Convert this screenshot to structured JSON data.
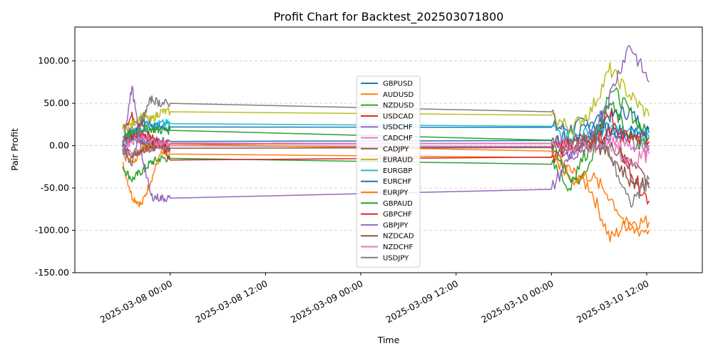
{
  "chart_data": {
    "type": "line",
    "title": "Profit Chart for Backtest_202503071800",
    "xlabel": "Time",
    "ylabel": "Pair Profit",
    "x_ticks": [
      "2025-03-08 00:00",
      "2025-03-08 12:00",
      "2025-03-09 00:00",
      "2025-03-09 12:00",
      "2025-03-10 00:00",
      "2025-03-10 12:00"
    ],
    "x_range_hours": [
      -12,
      67
    ],
    "y_ticks": [
      "100.00",
      "50.00",
      "0.00",
      "-50.00",
      "-100.00",
      "-150.00"
    ],
    "ylim": [
      -150,
      140
    ],
    "grid": "horizontal-dashed",
    "legend_position": "center",
    "series": [
      {
        "name": "GBPUSD",
        "color": "#1f77b4",
        "start": 10,
        "sessA": [
          12,
          30,
          25,
          22
        ],
        "end": 22,
        "sessB": [
          20,
          30,
          35,
          40
        ],
        "finish": 15
      },
      {
        "name": "AUDUSD",
        "color": "#ff7f0e",
        "start": -20,
        "sessA": [
          -60,
          -70,
          -40,
          -10
        ],
        "end": -10,
        "sessB": [
          -30,
          -50,
          -110,
          -90
        ],
        "finish": -90
      },
      {
        "name": "NZDUSD",
        "color": "#2ca02c",
        "start": -25,
        "sessA": [
          -40,
          -30,
          -20,
          -15
        ],
        "end": -15,
        "sessB": [
          -50,
          -20,
          70,
          40
        ],
        "finish": 10
      },
      {
        "name": "USDCAD",
        "color": "#d62728",
        "start": 20,
        "sessA": [
          35,
          25,
          10,
          5
        ],
        "end": -17,
        "sessB": [
          0,
          10,
          40,
          -30
        ],
        "finish": -65
      },
      {
        "name": "USDCHF",
        "color": "#9467bd",
        "start": 5,
        "sessA": [
          20,
          5,
          -5,
          0
        ],
        "end": 0,
        "sessB": [
          -10,
          0,
          10,
          5
        ],
        "finish": 0
      },
      {
        "name": "CADCHF",
        "color": "#e377c2",
        "start": -5,
        "sessA": [
          -10,
          -5,
          -2,
          0
        ],
        "end": 0,
        "sessB": [
          -5,
          0,
          5,
          0
        ],
        "finish": -5
      },
      {
        "name": "CADJPY",
        "color": "#8c564b",
        "start": 0,
        "sessA": [
          10,
          5,
          0,
          2
        ],
        "end": 2,
        "sessB": [
          5,
          10,
          0,
          -20
        ],
        "finish": -45
      },
      {
        "name": "EURAUD",
        "color": "#bcbd22",
        "start": 20,
        "sessA": [
          25,
          35,
          30,
          40
        ],
        "end": 40,
        "sessB": [
          20,
          40,
          90,
          60
        ],
        "finish": 35
      },
      {
        "name": "EURGBP",
        "color": "#17becf",
        "start": 5,
        "sessA": [
          15,
          20,
          22,
          26
        ],
        "end": 26,
        "sessB": [
          10,
          15,
          20,
          15
        ],
        "finish": 10
      },
      {
        "name": "EURCHF",
        "color": "#1f77b4",
        "start": 0,
        "sessA": [
          5,
          10,
          5,
          5
        ],
        "end": 5,
        "sessB": [
          10,
          20,
          20,
          15
        ],
        "finish": 20
      },
      {
        "name": "EURJPY",
        "color": "#ff7f0e",
        "start": -10,
        "sessA": [
          -20,
          -5,
          0,
          2
        ],
        "end": 2,
        "sessB": [
          -40,
          -35,
          -60,
          -100
        ],
        "finish": -100
      },
      {
        "name": "GBPAUD",
        "color": "#2ca02c",
        "start": 10,
        "sessA": [
          15,
          20,
          20,
          18
        ],
        "end": 18,
        "sessB": [
          -40,
          0,
          50,
          10
        ],
        "finish": -5
      },
      {
        "name": "GBPCHF",
        "color": "#d62728",
        "start": 5,
        "sessA": [
          10,
          15,
          5,
          3
        ],
        "end": 3,
        "sessB": [
          0,
          5,
          15,
          10
        ],
        "finish": 5
      },
      {
        "name": "GBPJPY",
        "color": "#9467bd",
        "start": 0,
        "sessA": [
          70,
          -10,
          -60,
          -62
        ],
        "end": -62,
        "sessB": [
          -10,
          10,
          60,
          120
        ],
        "finish": 75
      },
      {
        "name": "NZDCAD",
        "color": "#8c564b",
        "start": -5,
        "sessA": [
          -10,
          -5,
          -2,
          -3
        ],
        "end": -3,
        "sessB": [
          0,
          5,
          -10,
          -40
        ],
        "finish": -50
      },
      {
        "name": "NZDCHF",
        "color": "#e377c2",
        "start": 0,
        "sessA": [
          5,
          10,
          5,
          3
        ],
        "end": 3,
        "sessB": [
          0,
          -5,
          0,
          -20
        ],
        "finish": -10
      },
      {
        "name": "USDJPY",
        "color": "#7f7f7f",
        "start": -10,
        "sessA": [
          -20,
          30,
          55,
          50
        ],
        "end": 50,
        "sessB": [
          0,
          10,
          -10,
          -70
        ],
        "finish": -40
      }
    ]
  }
}
